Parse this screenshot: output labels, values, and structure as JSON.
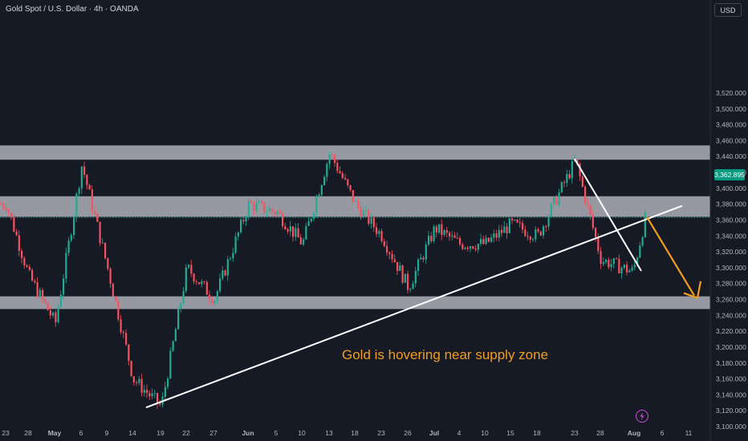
{
  "header": {
    "title": "Gold Spot / U.S. Dollar · 4h · OANDA",
    "currency": "USD"
  },
  "last_price": {
    "label": "3,362.895",
    "value": 3362.895,
    "color": "#089981"
  },
  "colors": {
    "up": "#22ab94",
    "down": "#f7525f",
    "zone": "#b2b5be",
    "arrow": "#f29d1f",
    "line": "#ffffff",
    "bg": "#161a25"
  },
  "chart_data": {
    "type": "candlestick",
    "instrument": "Gold Spot / U.S. Dollar",
    "timeframe": "4h",
    "source": "OANDA",
    "ylim": [
      3100,
      3535
    ],
    "y_ticks": [
      3520,
      3500,
      3480,
      3460,
      3440,
      3420,
      3400,
      3380,
      3360,
      3340,
      3320,
      3300,
      3280,
      3260,
      3240,
      3220,
      3200,
      3180,
      3160,
      3140,
      3120,
      3100
    ],
    "y_tick_labels": [
      "3,520.000",
      "3,500.000",
      "3,480.000",
      "3,460.000",
      "3,440.000",
      "3,420.000",
      "3,400.000",
      "3,380.000",
      "3,360.000",
      "3,340.000",
      "3,320.000",
      "3,300.000",
      "3,280.000",
      "3,260.000",
      "3,240.000",
      "3,220.000",
      "3,200.000",
      "3,180.000",
      "3,160.000",
      "3,140.000",
      "3,120.000",
      "3,100.000"
    ],
    "x_ticks": [
      "23",
      "28",
      "May",
      "6",
      "9",
      "14",
      "19",
      "22",
      "27",
      "Jun",
      "5",
      "10",
      "13",
      "18",
      "23",
      "26",
      "Jul",
      "4",
      "10",
      "15",
      "18",
      "23",
      "28",
      "Aug",
      "6",
      "11"
    ],
    "bold_x_ticks": [
      "May",
      "Jun",
      "Jul",
      "Aug"
    ],
    "price_path": [
      [
        "23",
        3380
      ],
      [
        "28",
        3290
      ],
      [
        "May",
        3230
      ],
      [
        "6",
        3430
      ],
      [
        "9",
        3300
      ],
      [
        "14",
        3160
      ],
      [
        "19",
        3125
      ],
      [
        "22",
        3300
      ],
      [
        "27",
        3260
      ],
      [
        "Jun",
        3380
      ],
      [
        "5",
        3370
      ],
      [
        "10",
        3330
      ],
      [
        "13",
        3445
      ],
      [
        "18",
        3380
      ],
      [
        "23",
        3340
      ],
      [
        "26",
        3275
      ],
      [
        "Jul",
        3350
      ],
      [
        "4",
        3330
      ],
      [
        "10",
        3330
      ],
      [
        "15",
        3355
      ],
      [
        "18",
        3340
      ],
      [
        "23",
        3435
      ],
      [
        "28",
        3310
      ],
      [
        "Aug",
        3295
      ],
      [
        "Aug",
        3362.895
      ]
    ],
    "zones": [
      {
        "from": 3436,
        "to": 3454
      },
      {
        "from": 3364,
        "to": 3390
      },
      {
        "from": 3248,
        "to": 3264
      }
    ],
    "trendlines": [
      {
        "from": [
          "19",
          3124
        ],
        "to": [
          "11",
          3378
        ]
      },
      {
        "from": [
          "23",
          3437
        ],
        "to": [
          "Aug",
          3296
        ]
      }
    ],
    "forecast_arrow": {
      "from": [
        "Aug",
        3364
      ],
      "to": [
        "11",
        3262
      ]
    },
    "annotations": [
      "Gold is hovering near supply zone"
    ]
  }
}
